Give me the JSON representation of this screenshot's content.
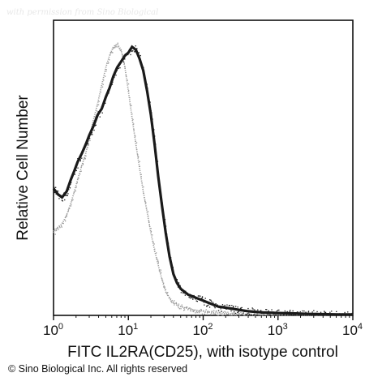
{
  "watermark": "with permission from Sino Biological",
  "copyright": "© Sino Biological Inc. All rights reserved",
  "chart_data": {
    "type": "histogram-overlay",
    "xlabel": "FITC IL2RA(CD25), with isotype control",
    "ylabel": "Relative Cell Number",
    "x_scale": "log",
    "xlim": [
      1,
      10000
    ],
    "ylim": [
      0,
      100
    ],
    "x_ticks": [
      {
        "value": 1,
        "base": "10",
        "exp": "0"
      },
      {
        "value": 10,
        "base": "10",
        "exp": "1"
      },
      {
        "value": 100,
        "base": "10",
        "exp": "2"
      },
      {
        "value": 1000,
        "base": "10",
        "exp": "3"
      },
      {
        "value": 10000,
        "base": "10",
        "exp": "4"
      }
    ],
    "series": [
      {
        "role": "stained",
        "color": "#1a1a1a",
        "points": [
          [
            1.0,
            43
          ],
          [
            1.15,
            41
          ],
          [
            1.3,
            40
          ],
          [
            1.5,
            42
          ],
          [
            1.7,
            46
          ],
          [
            1.9,
            49
          ],
          [
            2.1,
            52
          ],
          [
            2.4,
            55
          ],
          [
            2.7,
            58
          ],
          [
            3.0,
            61
          ],
          [
            3.4,
            64
          ],
          [
            3.9,
            68
          ],
          [
            4.4,
            70
          ],
          [
            5.0,
            74
          ],
          [
            5.6,
            77
          ],
          [
            6.3,
            81
          ],
          [
            7.1,
            84
          ],
          [
            8.0,
            86
          ],
          [
            9.0,
            88
          ],
          [
            10.0,
            89
          ],
          [
            11.2,
            91
          ],
          [
            12.6,
            90
          ],
          [
            14.1,
            87
          ],
          [
            15.8,
            83
          ],
          [
            17.8,
            76
          ],
          [
            20.0,
            68
          ],
          [
            22.4,
            58
          ],
          [
            25.1,
            47
          ],
          [
            28.2,
            37
          ],
          [
            31.6,
            28
          ],
          [
            35.5,
            20
          ],
          [
            40.0,
            14
          ],
          [
            44.7,
            11
          ],
          [
            50.1,
            9
          ],
          [
            56.2,
            8
          ],
          [
            63.1,
            7
          ],
          [
            70.8,
            6.5
          ],
          [
            79.4,
            6
          ],
          [
            89.1,
            5.5
          ],
          [
            100,
            5
          ],
          [
            125,
            4
          ],
          [
            158,
            3
          ],
          [
            200,
            2.6
          ],
          [
            251,
            2.2
          ],
          [
            316,
            1.8
          ],
          [
            400,
            1.4
          ],
          [
            500,
            1.2
          ],
          [
            631,
            1.0
          ],
          [
            794,
            0.9
          ],
          [
            1000,
            0.8
          ],
          [
            1585,
            0.7
          ],
          [
            2512,
            0.5
          ],
          [
            3981,
            0.4
          ],
          [
            6310,
            0.3
          ],
          [
            10000,
            0.3
          ]
        ]
      },
      {
        "role": "isotype control",
        "color": "#9a9a9a",
        "points": [
          [
            1.0,
            28
          ],
          [
            1.15,
            30
          ],
          [
            1.3,
            31
          ],
          [
            1.5,
            34
          ],
          [
            1.7,
            38
          ],
          [
            1.9,
            42
          ],
          [
            2.1,
            46
          ],
          [
            2.4,
            51
          ],
          [
            2.7,
            55
          ],
          [
            3.0,
            60
          ],
          [
            3.4,
            66
          ],
          [
            3.9,
            72
          ],
          [
            4.4,
            78
          ],
          [
            5.0,
            84
          ],
          [
            5.6,
            88
          ],
          [
            6.3,
            91
          ],
          [
            7.1,
            92
          ],
          [
            8.0,
            90
          ],
          [
            9.0,
            84
          ],
          [
            10.0,
            76
          ],
          [
            11.2,
            67
          ],
          [
            12.6,
            58
          ],
          [
            14.1,
            50
          ],
          [
            15.8,
            42
          ],
          [
            17.8,
            35
          ],
          [
            20.0,
            28
          ],
          [
            22.4,
            22
          ],
          [
            25.1,
            17
          ],
          [
            28.2,
            12
          ],
          [
            31.6,
            8
          ],
          [
            35.5,
            6
          ],
          [
            40.0,
            4.5
          ],
          [
            44.7,
            3.5
          ],
          [
            50.1,
            3
          ],
          [
            56.2,
            2.6
          ],
          [
            63.1,
            2.3
          ],
          [
            70.8,
            2
          ],
          [
            79.4,
            1.8
          ],
          [
            89.1,
            1.6
          ],
          [
            100,
            1.4
          ],
          [
            125,
            1.1
          ],
          [
            158,
            0.8
          ],
          [
            200,
            0.6
          ],
          [
            251,
            0.5
          ],
          [
            316,
            0.4
          ],
          [
            400,
            0.3
          ],
          [
            500,
            0.25
          ],
          [
            631,
            0.2
          ],
          [
            1000,
            0.15
          ],
          [
            10000,
            0.1
          ]
        ]
      }
    ]
  }
}
